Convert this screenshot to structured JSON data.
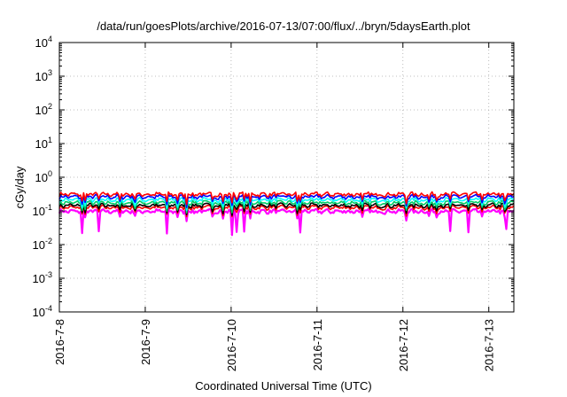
{
  "chart_data": {
    "type": "line",
    "title": "/data/run/goesPlots/archive/2016-07-13/07:00/flux/../bryn/5daysEarth.plot",
    "xlabel": "Coordinated Universal Time (UTC)",
    "ylabel": "cGy/day",
    "x_range": [
      "2016-07-08",
      "2016-07-13 07:00"
    ],
    "x_ticks": [
      "2016-7-8",
      "2016-7-9",
      "2016-7-10",
      "2016-7-11",
      "2016-7-12",
      "2016-7-13"
    ],
    "y_scale": "log",
    "ylim": [
      0.0001,
      10000
    ],
    "y_ticks": [
      {
        "base": "10",
        "exp": "-4"
      },
      {
        "base": "10",
        "exp": "-3"
      },
      {
        "base": "10",
        "exp": "-2"
      },
      {
        "base": "10",
        "exp": "-1"
      },
      {
        "base": "10",
        "exp": "0"
      },
      {
        "base": "10",
        "exp": "1"
      },
      {
        "base": "10",
        "exp": "2"
      },
      {
        "base": "10",
        "exp": "3"
      },
      {
        "base": "10",
        "exp": "4"
      }
    ],
    "grid": true,
    "series": [
      {
        "color": "#ff00ff",
        "base": 0.1,
        "dips": [
          0.5,
          0.4,
          0.5,
          0.3,
          0.45,
          0.5,
          0.4,
          0.5,
          0.45,
          0.5,
          0.35,
          0.5,
          0.5
        ]
      },
      {
        "color": "#ff0000",
        "base": 0.13
      },
      {
        "color": "#000000",
        "base": 0.15
      },
      {
        "color": "#00cc66",
        "base": 0.18
      },
      {
        "color": "#00ffff",
        "base": 0.22
      },
      {
        "color": "#0000ff",
        "base": 0.27
      },
      {
        "color": "#ff0000",
        "base": 0.32
      }
    ]
  }
}
